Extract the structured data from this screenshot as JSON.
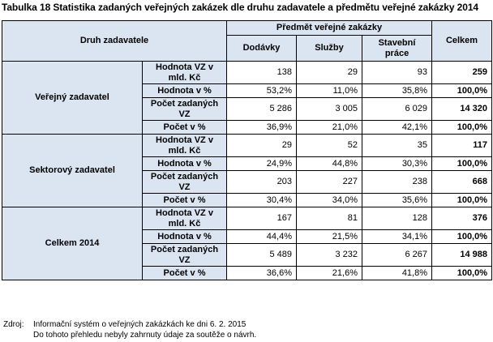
{
  "caption": "Tabulka 18  Statistika zadaných veřejných zakázek dle druhu zadavatele a předmětu veřejné zakázky 2014",
  "header": {
    "druh": "Druh zadavatele",
    "predmet": "Předmět veřejné zakázky",
    "dodavky": "Dodávky",
    "sluzby": "Služby",
    "stavebni": "Stavební práce",
    "celkem": "Celkem"
  },
  "groups": [
    {
      "name": "Veřejný zadavatel",
      "rows": [
        {
          "label": "Hodnota VZ v mld. Kč",
          "dodavky": "138",
          "sluzby": "29",
          "stavebni": "93",
          "celkem": "259"
        },
        {
          "label": "Hodnota v %",
          "dodavky": "53,2%",
          "sluzby": "11,0%",
          "stavebni": "35,8%",
          "celkem": "100,0%"
        },
        {
          "label": "Počet zadaných VZ",
          "dodavky": "5 286",
          "sluzby": "3 005",
          "stavebni": "6 029",
          "celkem": "14 320"
        },
        {
          "label": "Počet v %",
          "dodavky": "36,9%",
          "sluzby": "21,0%",
          "stavebni": "42,1%",
          "celkem": "100,0%"
        }
      ]
    },
    {
      "name": "Sektorový zadavatel",
      "rows": [
        {
          "label": "Hodnota VZ v mld. Kč",
          "dodavky": "29",
          "sluzby": "52",
          "stavebni": "35",
          "celkem": "117"
        },
        {
          "label": "Hodnota v %",
          "dodavky": "24,9%",
          "sluzby": "44,8%",
          "stavebni": "30,3%",
          "celkem": "100,0%"
        },
        {
          "label": "Počet zadaných VZ",
          "dodavky": "203",
          "sluzby": "227",
          "stavebni": "238",
          "celkem": "668"
        },
        {
          "label": "Počet v %",
          "dodavky": "30,4%",
          "sluzby": "34,0%",
          "stavebni": "35,6%",
          "celkem": "100,0%"
        }
      ]
    },
    {
      "name": "Celkem 2014",
      "rows": [
        {
          "label": "Hodnota VZ v mld. Kč",
          "dodavky": "167",
          "sluzby": "81",
          "stavebni": "128",
          "celkem": "376"
        },
        {
          "label": "Hodnota v %",
          "dodavky": "44,4%",
          "sluzby": "21,5%",
          "stavebni": "34,1%",
          "celkem": "100,0%"
        },
        {
          "label": "Počet zadaných VZ",
          "dodavky": "5 489",
          "sluzby": "3 232",
          "stavebni": "6 267",
          "celkem": "14 988"
        },
        {
          "label": "Počet v %",
          "dodavky": "36,6%",
          "sluzby": "21,6%",
          "stavebni": "41,8%",
          "celkem": "100,0%"
        }
      ]
    }
  ],
  "footer": {
    "label": "Zdroj:",
    "line1": "Informační systém o veřejných zakázkách ke dni 6. 2. 2015",
    "line2": "Do tohoto přehledu nebyly zahrnuty údaje za soutěže o návrh."
  }
}
